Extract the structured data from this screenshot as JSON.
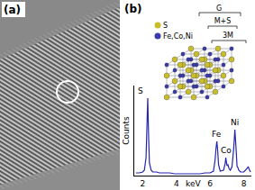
{
  "panel_labels": [
    "(a)",
    "(b)"
  ],
  "inset": {
    "legend": [
      {
        "label": "S",
        "color": "#c8bd2c"
      },
      {
        "label": "Fe,Co,Ni",
        "color": "#3a3aa8"
      }
    ],
    "labels": [
      "G",
      "M+S",
      "3M"
    ]
  },
  "chart_data": {
    "type": "line",
    "x_label": "keV",
    "y_label": "Counts",
    "color": "#2424b0",
    "x": [
      1.6,
      1.8,
      2.0,
      2.1,
      2.2,
      2.25,
      2.3,
      2.35,
      2.4,
      2.5,
      2.6,
      2.8,
      3.0,
      3.3,
      3.6,
      3.9,
      4.2,
      4.5,
      4.8,
      5.1,
      5.4,
      5.7,
      6.0,
      6.2,
      6.3,
      6.35,
      6.4,
      6.45,
      6.5,
      6.6,
      6.8,
      6.9,
      6.93,
      6.97,
      7.0,
      7.06,
      7.12,
      7.2,
      7.3,
      7.4,
      7.47,
      7.54,
      7.6,
      7.65,
      7.7,
      7.8,
      8.0,
      8.2,
      8.26,
      8.32,
      8.4
    ],
    "values": [
      3,
      3,
      4,
      6,
      20,
      55,
      86,
      45,
      14,
      6,
      4,
      4,
      3,
      3,
      3,
      2,
      2,
      2,
      2,
      2,
      2,
      3,
      3,
      5,
      18,
      30,
      38,
      28,
      12,
      5,
      6,
      14,
      20,
      15,
      11,
      12,
      8,
      6,
      10,
      30,
      51,
      30,
      10,
      9,
      6,
      4,
      4,
      8,
      10,
      7,
      4
    ],
    "xlim": [
      1.5,
      8.45
    ],
    "xticks": [
      2,
      4,
      6,
      8
    ],
    "ylim": [
      0,
      100
    ],
    "tick_labels": "x",
    "annotations": [
      {
        "text": "S",
        "x": 2.3,
        "y": 86
      },
      {
        "text": "Fe",
        "x": 6.4,
        "y": 38
      },
      {
        "text": "Co",
        "x": 6.93,
        "y": 20
      },
      {
        "text": "Ni",
        "x": 7.47,
        "y": 51
      }
    ]
  }
}
